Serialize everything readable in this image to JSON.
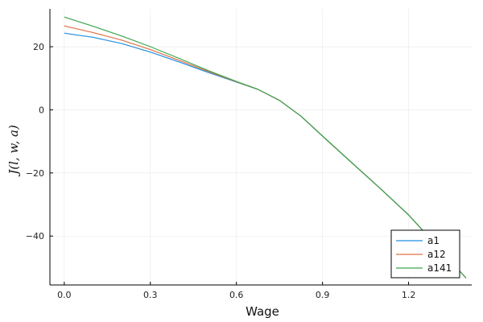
{
  "chart_data": {
    "type": "line",
    "xlabel": "Wage",
    "ylabel": "J(l, w, a)",
    "xlim": [
      -0.05,
      1.42
    ],
    "ylim": [
      -55.5,
      32
    ],
    "xticks": [
      0.0,
      0.3,
      0.6,
      0.9,
      1.2
    ],
    "xtick_labels": [
      "0.0",
      "0.3",
      "0.6",
      "0.9",
      "1.2"
    ],
    "yticks": [
      20,
      0,
      -20,
      -40
    ],
    "ytick_labels": [
      "20",
      "0",
      "−20",
      "−40"
    ],
    "grid": true,
    "legend_position": "bottom-right",
    "series": [
      {
        "name": "a1",
        "color": "#1f8fe0",
        "x": [
          0.0,
          0.1,
          0.2,
          0.3,
          0.4,
          0.5,
          0.6,
          0.675,
          0.75,
          0.825,
          0.9,
          1.0,
          1.1,
          1.2,
          1.3,
          1.4
        ],
        "y": [
          24.3,
          23.0,
          21.0,
          18.3,
          15.2,
          11.9,
          8.8,
          6.5,
          3.0,
          -2.0,
          -8.3,
          -16.6,
          -24.8,
          -33.3,
          -43.2,
          -53.3
        ]
      },
      {
        "name": "a12",
        "color": "#e26f46",
        "x": [
          0.0,
          0.1,
          0.2,
          0.3,
          0.4,
          0.5,
          0.6,
          0.675,
          0.75,
          0.825,
          0.9,
          1.0,
          1.1,
          1.2,
          1.3,
          1.4
        ],
        "y": [
          26.6,
          24.5,
          22.1,
          19.1,
          15.7,
          12.2,
          8.9,
          6.5,
          3.0,
          -2.0,
          -8.3,
          -16.6,
          -24.8,
          -33.3,
          -43.2,
          -53.3
        ]
      },
      {
        "name": "a141",
        "color": "#3da44d",
        "x": [
          0.0,
          0.1,
          0.2,
          0.3,
          0.4,
          0.5,
          0.6,
          0.675,
          0.75,
          0.825,
          0.9,
          1.0,
          1.1,
          1.2,
          1.3,
          1.4
        ],
        "y": [
          29.4,
          26.5,
          23.4,
          20.0,
          16.3,
          12.5,
          9.0,
          6.5,
          3.0,
          -2.0,
          -8.3,
          -16.6,
          -24.8,
          -33.3,
          -43.2,
          -53.3
        ]
      }
    ]
  }
}
